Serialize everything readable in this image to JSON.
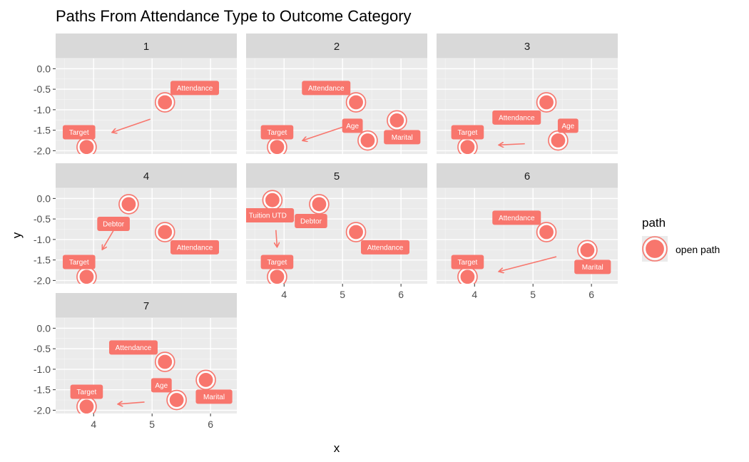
{
  "title": "Paths From Attendance Type to Outcome Category",
  "colors": {
    "open_path": "#f8766d",
    "panel_bg": "#ebebeb",
    "strip_bg": "#d9d9d9"
  },
  "chart_data": {
    "type": "scatter",
    "description_kind": "faceted dag plot",
    "xlabel": "x",
    "ylabel": "y",
    "xlim": [
      3.35,
      6.45
    ],
    "ylim": [
      -2.08,
      0.25
    ],
    "x_ticks": [
      4,
      5,
      6
    ],
    "y_ticks": [
      0.0,
      -0.5,
      -1.0,
      -1.5,
      -2.0
    ],
    "y_tick_labels": [
      "0.0",
      "-0.5",
      "-1.0",
      "-1.5",
      "-2.0"
    ],
    "legend": {
      "title": "path",
      "entries": [
        "open path"
      ],
      "position": "right"
    },
    "panels": [
      {
        "id": "1",
        "nodes": [
          {
            "name": "Attendance",
            "x": 5.22,
            "y": -0.82
          },
          {
            "name": "Target",
            "x": 3.88,
            "y": -1.91
          }
        ],
        "labels": [
          {
            "text": "Attendance",
            "x": 5.73,
            "y": -0.47
          },
          {
            "text": "Target",
            "x": 3.75,
            "y": -1.55
          }
        ],
        "edges": [
          {
            "from": [
              4.97,
              -1.23
            ],
            "to": [
              4.32,
              -1.55
            ]
          }
        ]
      },
      {
        "id": "2",
        "nodes": [
          {
            "name": "Attendance",
            "x": 5.23,
            "y": -0.82
          },
          {
            "name": "Age",
            "x": 5.43,
            "y": -1.75
          },
          {
            "name": "Marital",
            "x": 5.93,
            "y": -1.26
          },
          {
            "name": "Target",
            "x": 3.88,
            "y": -1.91
          }
        ],
        "labels": [
          {
            "text": "Attendance",
            "x": 4.72,
            "y": -0.47
          },
          {
            "text": "Age",
            "x": 5.17,
            "y": -1.39
          },
          {
            "text": "Marital",
            "x": 6.02,
            "y": -1.67
          },
          {
            "text": "Target",
            "x": 3.88,
            "y": -1.55
          }
        ],
        "edges": [
          {
            "from": [
              5.03,
              -1.41
            ],
            "to": [
              4.32,
              -1.75
            ]
          }
        ]
      },
      {
        "id": "3",
        "nodes": [
          {
            "name": "Attendance",
            "x": 5.23,
            "y": -0.82
          },
          {
            "name": "Age",
            "x": 5.43,
            "y": -1.75
          },
          {
            "name": "Target",
            "x": 3.88,
            "y": -1.91
          }
        ],
        "labels": [
          {
            "text": "Attendance",
            "x": 4.72,
            "y": -1.19
          },
          {
            "text": "Age",
            "x": 5.6,
            "y": -1.39
          },
          {
            "text": "Target",
            "x": 3.88,
            "y": -1.55
          }
        ],
        "edges": [
          {
            "from": [
              4.86,
              -1.83
            ],
            "to": [
              4.42,
              -1.86
            ]
          }
        ]
      },
      {
        "id": "4",
        "nodes": [
          {
            "name": "Debtor",
            "x": 4.6,
            "y": -0.14
          },
          {
            "name": "Attendance",
            "x": 5.22,
            "y": -0.82
          },
          {
            "name": "Target",
            "x": 3.88,
            "y": -1.91
          }
        ],
        "labels": [
          {
            "text": "Debtor",
            "x": 4.34,
            "y": -0.62
          },
          {
            "text": "Attendance",
            "x": 5.73,
            "y": -1.19
          },
          {
            "text": "Target",
            "x": 3.75,
            "y": -1.55
          }
        ],
        "edges": [
          {
            "from": [
              4.34,
              -0.78
            ],
            "to": [
              4.15,
              -1.24
            ]
          }
        ]
      },
      {
        "id": "5",
        "nodes": [
          {
            "name": "Tuition UTD",
            "x": 3.8,
            "y": -0.04
          },
          {
            "name": "Debtor",
            "x": 4.6,
            "y": -0.14
          },
          {
            "name": "Attendance",
            "x": 5.23,
            "y": -0.82
          },
          {
            "name": "Target",
            "x": 3.88,
            "y": -1.91
          }
        ],
        "labels": [
          {
            "text": "Tuition UTD",
            "x": 3.72,
            "y": -0.41
          },
          {
            "text": "Debtor",
            "x": 4.46,
            "y": -0.55
          },
          {
            "text": "Attendance",
            "x": 5.73,
            "y": -1.19
          },
          {
            "text": "Target",
            "x": 3.88,
            "y": -1.55
          }
        ],
        "edges": [
          {
            "from": [
              3.86,
              -0.77
            ],
            "to": [
              3.88,
              -1.18
            ]
          }
        ]
      },
      {
        "id": "6",
        "nodes": [
          {
            "name": "Attendance",
            "x": 5.23,
            "y": -0.82
          },
          {
            "name": "Marital",
            "x": 5.93,
            "y": -1.26
          },
          {
            "name": "Target",
            "x": 3.88,
            "y": -1.91
          }
        ],
        "labels": [
          {
            "text": "Attendance",
            "x": 4.72,
            "y": -0.47
          },
          {
            "text": "Marital",
            "x": 6.02,
            "y": -1.67
          },
          {
            "text": "Target",
            "x": 3.88,
            "y": -1.55
          }
        ],
        "edges": [
          {
            "from": [
              5.4,
              -1.42
            ],
            "to": [
              4.42,
              -1.78
            ]
          }
        ]
      },
      {
        "id": "7",
        "nodes": [
          {
            "name": "Attendance",
            "x": 5.22,
            "y": -0.82
          },
          {
            "name": "Age",
            "x": 5.42,
            "y": -1.75
          },
          {
            "name": "Marital",
            "x": 5.92,
            "y": -1.26
          },
          {
            "name": "Target",
            "x": 3.88,
            "y": -1.91
          }
        ],
        "labels": [
          {
            "text": "Attendance",
            "x": 4.68,
            "y": -0.47
          },
          {
            "text": "Age",
            "x": 5.16,
            "y": -1.39
          },
          {
            "text": "Marital",
            "x": 6.06,
            "y": -1.67
          },
          {
            "text": "Target",
            "x": 3.88,
            "y": -1.55
          }
        ],
        "edges": [
          {
            "from": [
              4.87,
              -1.8
            ],
            "to": [
              4.42,
              -1.85
            ]
          }
        ]
      }
    ]
  }
}
